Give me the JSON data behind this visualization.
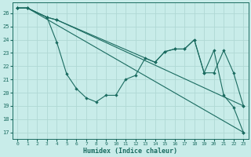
{
  "bg_color": "#c8ece9",
  "grid_color": "#b0d8d4",
  "line_color": "#1a6b60",
  "xlabel": "Humidex (Indice chaleur)",
  "xlim": [
    -0.5,
    23.5
  ],
  "ylim": [
    16.5,
    26.8
  ],
  "yticks": [
    17,
    18,
    19,
    20,
    21,
    22,
    23,
    24,
    25,
    26
  ],
  "xticks": [
    0,
    1,
    2,
    3,
    4,
    5,
    6,
    7,
    8,
    9,
    10,
    11,
    12,
    13,
    14,
    15,
    16,
    17,
    18,
    19,
    20,
    21,
    22,
    23
  ],
  "line1_x": [
    0,
    1,
    23
  ],
  "line1_y": [
    26.4,
    26.4,
    17.0
  ],
  "line2_x": [
    0,
    1,
    3,
    4,
    5,
    6,
    7,
    8,
    9,
    10,
    11,
    12,
    13,
    14,
    15,
    16,
    17,
    18,
    19,
    20,
    21,
    22,
    23
  ],
  "line2_y": [
    26.4,
    26.4,
    25.7,
    23.8,
    21.4,
    20.3,
    19.6,
    19.3,
    19.8,
    19.8,
    21.0,
    21.3,
    22.6,
    22.3,
    23.1,
    23.3,
    23.3,
    24.0,
    21.5,
    21.5,
    23.2,
    21.5,
    19.0
  ],
  "line3_x": [
    0,
    1,
    3,
    4,
    14,
    15,
    16,
    17,
    18,
    19,
    20,
    21,
    22,
    23
  ],
  "line3_y": [
    26.4,
    26.4,
    25.7,
    25.5,
    22.3,
    23.1,
    23.3,
    23.3,
    24.0,
    21.5,
    23.2,
    19.8,
    18.9,
    17.0
  ],
  "line4_x": [
    0,
    1,
    3,
    4,
    23
  ],
  "line4_y": [
    26.4,
    26.4,
    25.7,
    25.5,
    19.0
  ]
}
